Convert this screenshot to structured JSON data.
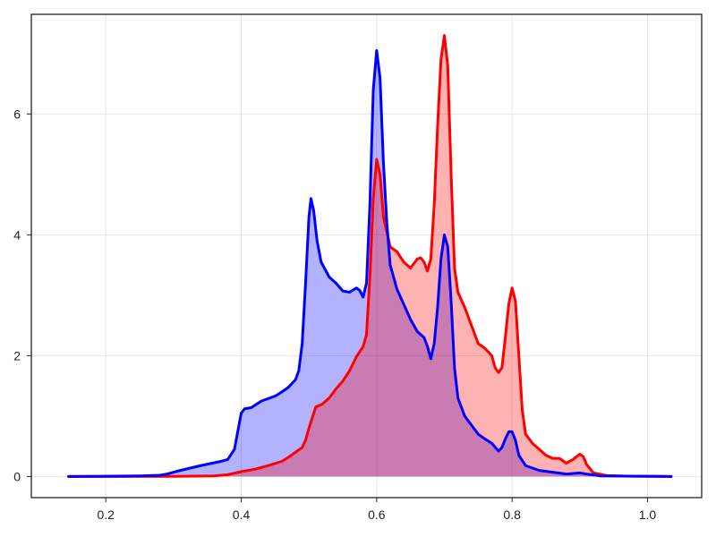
{
  "chart_data": {
    "type": "area",
    "title": "",
    "xlabel": "",
    "ylabel": "",
    "xlim": [
      0.09,
      1.08
    ],
    "ylim": [
      -0.35,
      7.65
    ],
    "grid": true,
    "x_ticks": [
      {
        "value": 0.2,
        "label": "0.2"
      },
      {
        "value": 0.4,
        "label": "0.4"
      },
      {
        "value": 0.6,
        "label": "0.6"
      },
      {
        "value": 0.8,
        "label": "0.8"
      },
      {
        "value": 1.0,
        "label": "1.0"
      }
    ],
    "y_ticks": [
      {
        "value": 0,
        "label": "0"
      },
      {
        "value": 2,
        "label": "2"
      },
      {
        "value": 4,
        "label": "4"
      },
      {
        "value": 6,
        "label": "6"
      }
    ],
    "series": [
      {
        "color": "#0000ff",
        "fill": "#0000ff",
        "fill_alpha": 0.3,
        "points": [
          [
            0.145,
            0
          ],
          [
            0.2,
            0.003
          ],
          [
            0.25,
            0.01
          ],
          [
            0.28,
            0.02
          ],
          [
            0.29,
            0.04
          ],
          [
            0.31,
            0.1
          ],
          [
            0.34,
            0.18
          ],
          [
            0.37,
            0.25
          ],
          [
            0.38,
            0.28
          ],
          [
            0.39,
            0.45
          ],
          [
            0.395,
            0.75
          ],
          [
            0.4,
            1.05
          ],
          [
            0.405,
            1.12
          ],
          [
            0.415,
            1.14
          ],
          [
            0.43,
            1.25
          ],
          [
            0.45,
            1.33
          ],
          [
            0.46,
            1.4
          ],
          [
            0.47,
            1.48
          ],
          [
            0.48,
            1.6
          ],
          [
            0.485,
            1.75
          ],
          [
            0.49,
            2.2
          ],
          [
            0.495,
            3.2
          ],
          [
            0.5,
            4.3
          ],
          [
            0.503,
            4.6
          ],
          [
            0.507,
            4.4
          ],
          [
            0.512,
            3.9
          ],
          [
            0.518,
            3.55
          ],
          [
            0.53,
            3.3
          ],
          [
            0.54,
            3.2
          ],
          [
            0.55,
            3.07
          ],
          [
            0.56,
            3.05
          ],
          [
            0.57,
            3.12
          ],
          [
            0.575,
            3.08
          ],
          [
            0.58,
            2.97
          ],
          [
            0.585,
            3.2
          ],
          [
            0.59,
            4.5
          ],
          [
            0.595,
            6.4
          ],
          [
            0.6,
            7.05
          ],
          [
            0.605,
            6.6
          ],
          [
            0.61,
            5.2
          ],
          [
            0.615,
            4.2
          ],
          [
            0.62,
            3.5
          ],
          [
            0.63,
            3.1
          ],
          [
            0.64,
            2.85
          ],
          [
            0.65,
            2.6
          ],
          [
            0.66,
            2.4
          ],
          [
            0.67,
            2.3
          ],
          [
            0.675,
            2.15
          ],
          [
            0.68,
            1.95
          ],
          [
            0.685,
            2.2
          ],
          [
            0.69,
            2.8
          ],
          [
            0.695,
            3.6
          ],
          [
            0.7,
            4.0
          ],
          [
            0.705,
            3.8
          ],
          [
            0.71,
            2.9
          ],
          [
            0.715,
            1.8
          ],
          [
            0.72,
            1.3
          ],
          [
            0.73,
            1.0
          ],
          [
            0.74,
            0.85
          ],
          [
            0.75,
            0.7
          ],
          [
            0.76,
            0.62
          ],
          [
            0.77,
            0.55
          ],
          [
            0.78,
            0.42
          ],
          [
            0.785,
            0.48
          ],
          [
            0.79,
            0.62
          ],
          [
            0.795,
            0.74
          ],
          [
            0.8,
            0.74
          ],
          [
            0.805,
            0.6
          ],
          [
            0.81,
            0.35
          ],
          [
            0.82,
            0.18
          ],
          [
            0.84,
            0.1
          ],
          [
            0.86,
            0.07
          ],
          [
            0.88,
            0.04
          ],
          [
            0.9,
            0.06
          ],
          [
            0.91,
            0.04
          ],
          [
            0.93,
            0.01
          ],
          [
            0.97,
            0.005
          ],
          [
            1.0,
            0.003
          ],
          [
            1.035,
            0
          ]
        ]
      },
      {
        "color": "#ff0000",
        "fill": "#ff0000",
        "fill_alpha": 0.3,
        "points": [
          [
            0.145,
            0
          ],
          [
            0.3,
            0.002
          ],
          [
            0.36,
            0.01
          ],
          [
            0.38,
            0.03
          ],
          [
            0.4,
            0.08
          ],
          [
            0.42,
            0.12
          ],
          [
            0.44,
            0.18
          ],
          [
            0.46,
            0.25
          ],
          [
            0.47,
            0.32
          ],
          [
            0.48,
            0.4
          ],
          [
            0.49,
            0.48
          ],
          [
            0.495,
            0.6
          ],
          [
            0.5,
            0.8
          ],
          [
            0.51,
            1.15
          ],
          [
            0.52,
            1.2
          ],
          [
            0.53,
            1.3
          ],
          [
            0.54,
            1.45
          ],
          [
            0.55,
            1.58
          ],
          [
            0.56,
            1.75
          ],
          [
            0.57,
            1.98
          ],
          [
            0.58,
            2.15
          ],
          [
            0.585,
            2.35
          ],
          [
            0.59,
            3.3
          ],
          [
            0.595,
            4.6
          ],
          [
            0.6,
            5.25
          ],
          [
            0.605,
            5.0
          ],
          [
            0.61,
            4.3
          ],
          [
            0.62,
            3.8
          ],
          [
            0.63,
            3.72
          ],
          [
            0.64,
            3.55
          ],
          [
            0.65,
            3.45
          ],
          [
            0.66,
            3.6
          ],
          [
            0.665,
            3.62
          ],
          [
            0.67,
            3.55
          ],
          [
            0.675,
            3.4
          ],
          [
            0.68,
            3.6
          ],
          [
            0.685,
            4.5
          ],
          [
            0.69,
            5.8
          ],
          [
            0.695,
            6.9
          ],
          [
            0.7,
            7.3
          ],
          [
            0.705,
            6.8
          ],
          [
            0.71,
            5.0
          ],
          [
            0.715,
            3.45
          ],
          [
            0.72,
            3.05
          ],
          [
            0.73,
            2.8
          ],
          [
            0.74,
            2.5
          ],
          [
            0.75,
            2.2
          ],
          [
            0.76,
            2.12
          ],
          [
            0.77,
            2.0
          ],
          [
            0.775,
            1.8
          ],
          [
            0.78,
            1.72
          ],
          [
            0.785,
            1.8
          ],
          [
            0.79,
            2.3
          ],
          [
            0.795,
            2.85
          ],
          [
            0.8,
            3.12
          ],
          [
            0.805,
            2.9
          ],
          [
            0.81,
            2.0
          ],
          [
            0.815,
            1.1
          ],
          [
            0.82,
            0.7
          ],
          [
            0.83,
            0.55
          ],
          [
            0.84,
            0.45
          ],
          [
            0.85,
            0.35
          ],
          [
            0.86,
            0.3
          ],
          [
            0.87,
            0.3
          ],
          [
            0.88,
            0.22
          ],
          [
            0.89,
            0.28
          ],
          [
            0.9,
            0.37
          ],
          [
            0.905,
            0.33
          ],
          [
            0.91,
            0.2
          ],
          [
            0.92,
            0.06
          ],
          [
            0.94,
            0.015
          ],
          [
            0.97,
            0.005
          ],
          [
            1.0,
            0.002
          ],
          [
            1.035,
            0
          ]
        ]
      }
    ]
  }
}
